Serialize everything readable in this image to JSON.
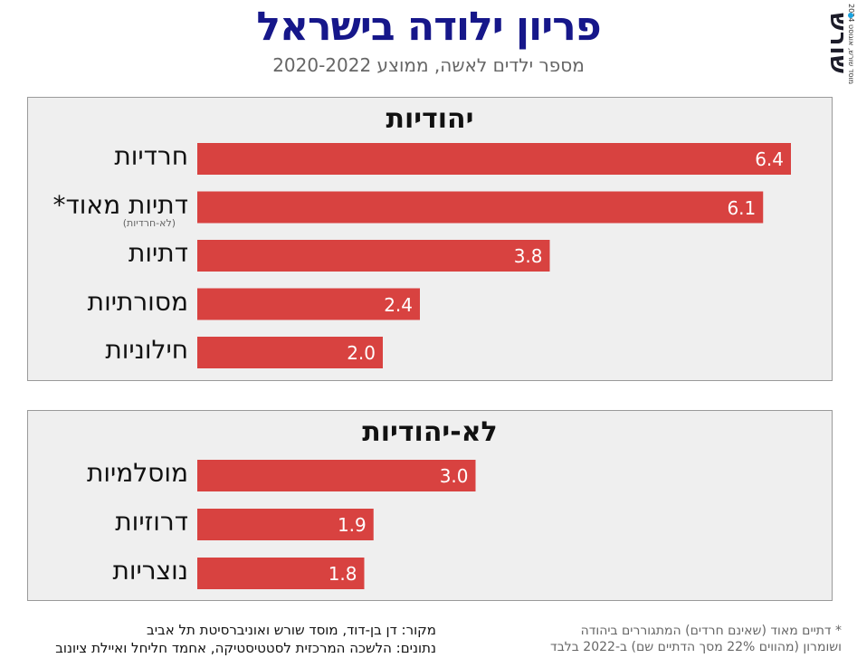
{
  "header": {
    "title": "פריון ילודה בישראל",
    "subtitle": "מספר ילדים לאשה, ממוצע 2020-2022"
  },
  "logo": {
    "text": "שורש",
    "caption": "מוסד שורש, אוגוסט 2024",
    "accent_color": "#1aa3e0"
  },
  "chart_data": [
    {
      "type": "bar",
      "title": "יהודיות",
      "categories": [
        "חרדיות",
        "דתיות מאוד*",
        "דתיות",
        "מסורתיות",
        "חילוניות"
      ],
      "category_notes": [
        "",
        "(לא-חרדיות)",
        "",
        "",
        ""
      ],
      "values": [
        6.4,
        6.1,
        3.8,
        2.4,
        2.0
      ],
      "value_labels": [
        "6.4",
        "6.1",
        "3.8",
        "2.4",
        "2.0"
      ],
      "orientation": "horizontal",
      "xlim": [
        0,
        6.5
      ],
      "grid": false,
      "color": "#d84240"
    },
    {
      "type": "bar",
      "title": "לא-יהודיות",
      "categories": [
        "מוסלמיות",
        "דרוזיות",
        "נוצריות"
      ],
      "category_notes": [
        "",
        "",
        ""
      ],
      "values": [
        3.0,
        1.9,
        1.8
      ],
      "value_labels": [
        "3.0",
        "1.9",
        "1.8"
      ],
      "orientation": "horizontal",
      "xlim": [
        0,
        6.5
      ],
      "grid": false,
      "color": "#d84240"
    }
  ],
  "footer": {
    "source_line1": "מקור:  דן בן-דוד, מוסד שורש ואוניברסיטת תל אביב",
    "source_line2": "נתונים: הלשכה המרכזית לסטטיסטיקה, אחמד חליחל ואיילת ציונוב",
    "note_line1": "* דתיים מאוד (שאינם חרדים) המתגוררים ביהודה",
    "note_line2": "ושומרון (מהווים 22% מסך הדתיים שם) ב-2022 בלבד"
  }
}
